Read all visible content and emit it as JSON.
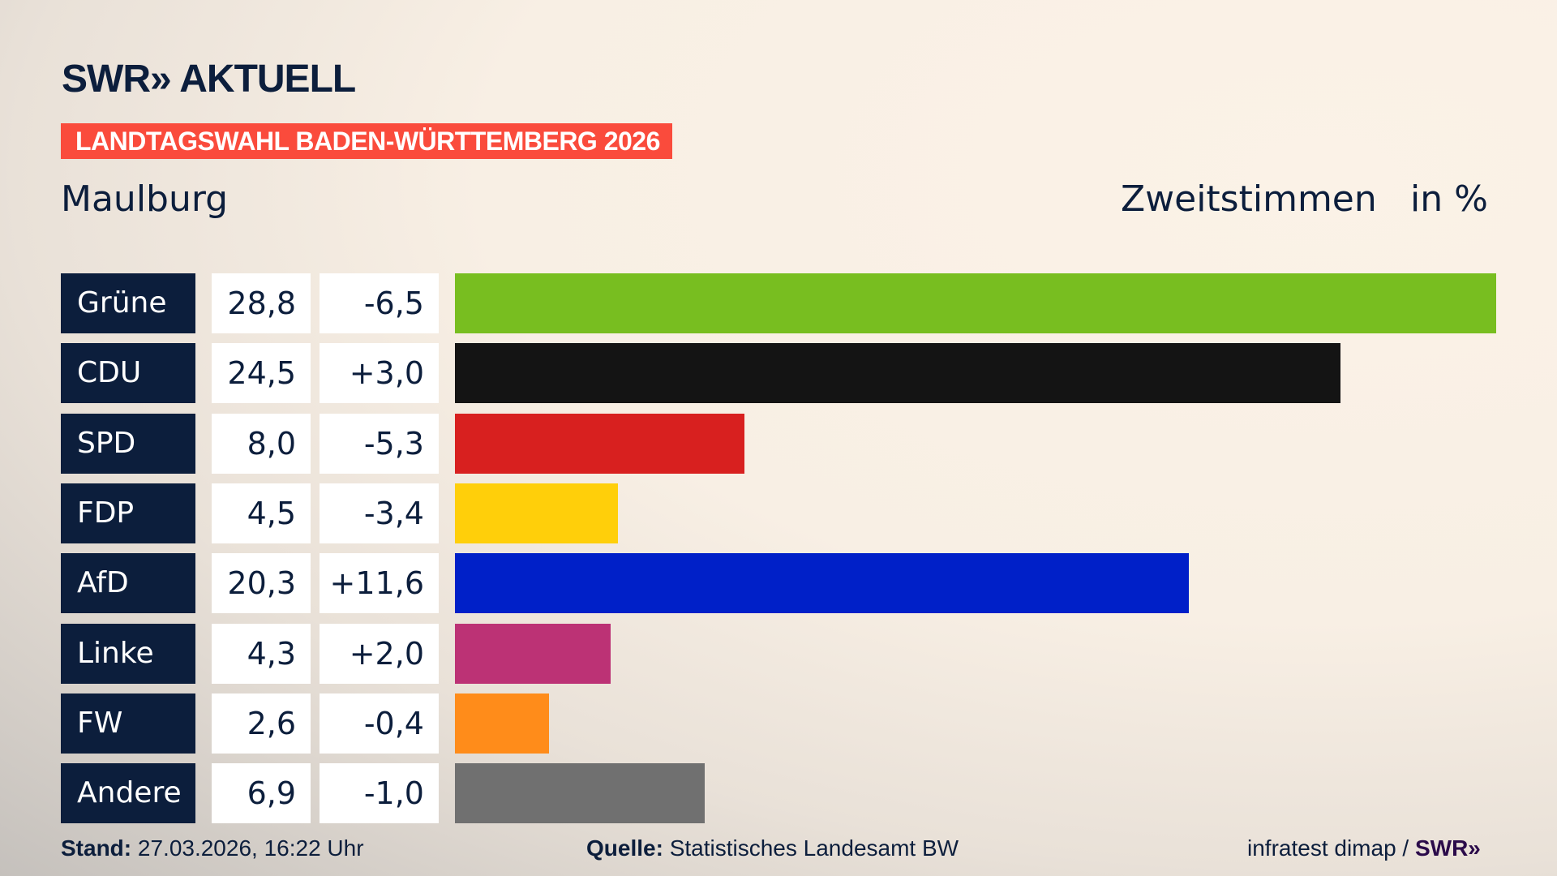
{
  "header": {
    "logo": "SWR» AKTUELL",
    "banner": "LANDTAGSWAHL BADEN-WÜRTTEMBERG 2026",
    "place": "Maulburg",
    "metric": "Zweitstimmen",
    "unit": "in %"
  },
  "chart_data": {
    "type": "bar",
    "orientation": "horizontal",
    "categories": [
      "Grüne",
      "CDU",
      "SPD",
      "FDP",
      "AfD",
      "Linke",
      "FW",
      "Andere"
    ],
    "values": [
      28.8,
      24.5,
      8.0,
      4.5,
      20.3,
      4.3,
      2.6,
      6.9
    ],
    "value_labels": [
      "28,8",
      "24,5",
      "8,0",
      "4,5",
      "20,3",
      "4,3",
      "2,6",
      "6,9"
    ],
    "diff_labels": [
      "-6,5",
      "+3,0",
      "-5,3",
      "-3,4",
      "+11,6",
      "+2,0",
      "-0,4",
      "-1,0"
    ],
    "colors": [
      "#78be20",
      "#141414",
      "#d8201f",
      "#ffcf0a",
      "#0020c8",
      "#bc3275",
      "#ff8c1a",
      "#707070"
    ],
    "grid": false
  },
  "footer": {
    "stand_label": "Stand:",
    "stand_value": "27.03.2026, 16:22 Uhr",
    "source_label": "Quelle:",
    "source_value": "Statistisches Landesamt BW",
    "credit": "infratest dimap /",
    "credit_logo": "SWR»"
  }
}
